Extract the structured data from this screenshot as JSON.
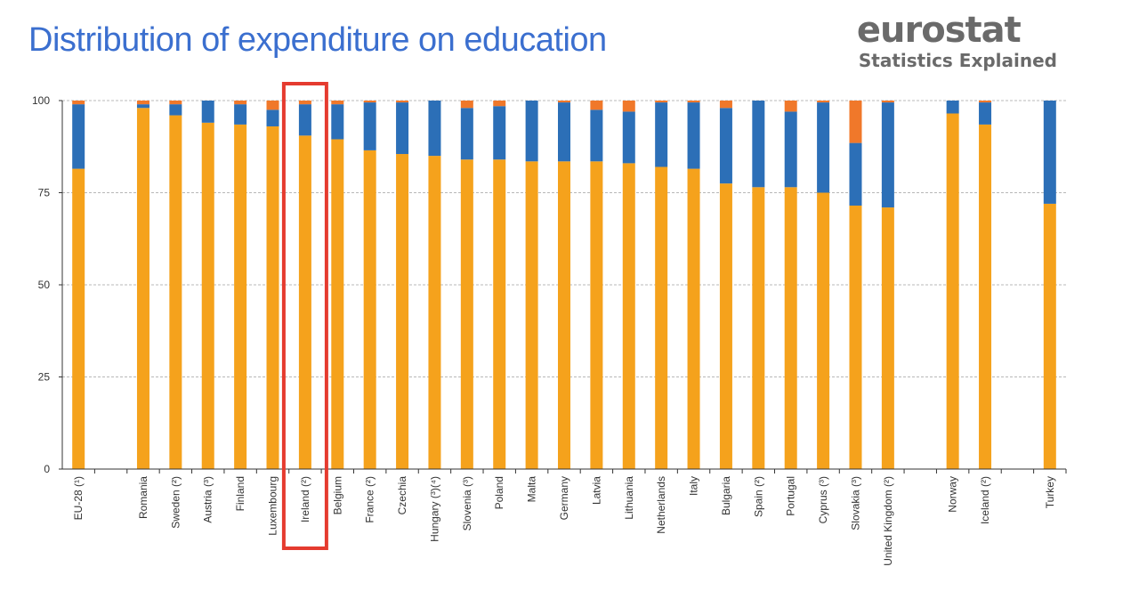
{
  "header": {
    "title": "Distribution of expenditure on education",
    "brand_name": "eurostat",
    "brand_tagline": "Statistics Explained"
  },
  "colors": {
    "series_1": "#f5a21c",
    "series_2": "#2c6fb7",
    "series_3": "#f0782a",
    "highlight_box": "#e53b2f",
    "grid": "#b8b8b8"
  },
  "chart_data": {
    "type": "bar",
    "stacked": true,
    "ylim": [
      0,
      100
    ],
    "yticks": [
      0,
      25,
      50,
      75,
      100
    ],
    "grid": true,
    "highlight": "Ireland (²)",
    "categories": [
      "EU-28 (¹)",
      "Romania",
      "Sweden (²)",
      "Austria (³)",
      "Finland",
      "Luxembourg",
      "Ireland (²)",
      "Belgium",
      "France (²)",
      "Czechia",
      "Hungary (³)(⁴)",
      "Slovenia (³)",
      "Poland",
      "Malta",
      "Germany",
      "Latvia",
      "Lithuania",
      "Netherlands",
      "Italy",
      "Bulgaria",
      "Spain (²)",
      "Portugal",
      "Cyprus (³)",
      "Slovakia (³)",
      "United Kingdom (²)",
      "Norway",
      "Iceland (²)",
      "Turkey"
    ],
    "gap_after": [
      0,
      24,
      26
    ],
    "series": [
      {
        "values": [
          81.5,
          98,
          96,
          94,
          93.5,
          93,
          90.5,
          89.5,
          86.5,
          85.5,
          85,
          84,
          84,
          83.5,
          83.5,
          83.5,
          83,
          82,
          81.5,
          77.5,
          76.5,
          76.5,
          75,
          71.5,
          71,
          96.5,
          93.5,
          72
        ]
      },
      {
        "values": [
          17.5,
          1,
          3,
          6,
          5.5,
          4.5,
          8.5,
          9.5,
          13,
          14,
          15,
          14,
          14.5,
          16.5,
          16,
          14,
          14,
          17.5,
          18,
          20.5,
          23.5,
          20.5,
          24.5,
          17,
          28.5,
          3.5,
          6,
          28
        ]
      },
      {
        "values": [
          1,
          1,
          1,
          0,
          1,
          2.5,
          1,
          1,
          0.5,
          0.5,
          0,
          2,
          1.5,
          0,
          0.5,
          2.5,
          3,
          0.5,
          0.5,
          2,
          0,
          3,
          0.5,
          11.5,
          0.5,
          0,
          0.5,
          0
        ]
      }
    ]
  }
}
